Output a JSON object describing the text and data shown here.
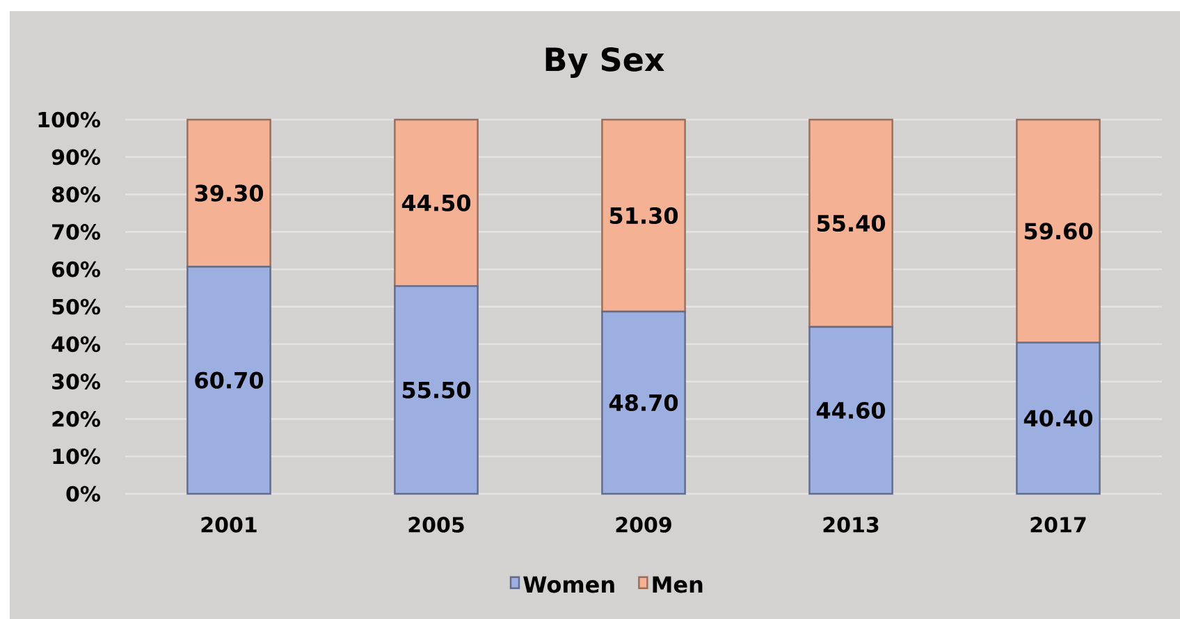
{
  "chart_data": {
    "type": "bar",
    "title": "By Sex",
    "categories": [
      "2001",
      "2005",
      "2009",
      "2013",
      "2017"
    ],
    "stacked": true,
    "series": [
      {
        "name": "Women",
        "color": "#9cafe0",
        "values": [
          60.7,
          55.5,
          48.7,
          44.6,
          40.4
        ],
        "value_labels": [
          "60.70",
          "55.50",
          "48.70",
          "44.60",
          "40.40"
        ]
      },
      {
        "name": "Men",
        "color": "#f5b193",
        "values": [
          39.3,
          44.5,
          51.3,
          55.4,
          59.6
        ],
        "value_labels": [
          "39.30",
          "44.50",
          "51.30",
          "55.40",
          "59.60"
        ]
      }
    ],
    "ylim": [
      0,
      100
    ],
    "yticks": [
      {
        "value": 0,
        "label": "0%"
      },
      {
        "value": 10,
        "label": "10%"
      },
      {
        "value": 20,
        "label": "20%"
      },
      {
        "value": 30,
        "label": "30%"
      },
      {
        "value": 40,
        "label": "40%"
      },
      {
        "value": 50,
        "label": "50%"
      },
      {
        "value": 60,
        "label": "60%"
      },
      {
        "value": 70,
        "label": "70%"
      },
      {
        "value": 80,
        "label": "80%"
      },
      {
        "value": 90,
        "label": "90%"
      },
      {
        "value": 100,
        "label": "100%"
      }
    ],
    "grid": "y",
    "legend": "bottom"
  }
}
